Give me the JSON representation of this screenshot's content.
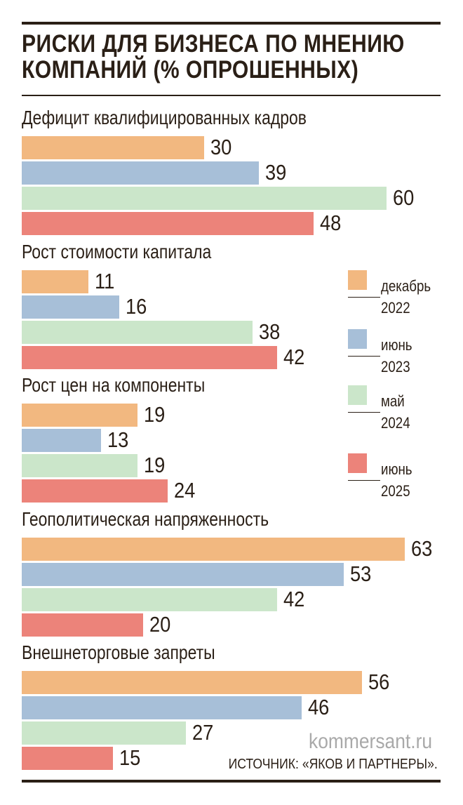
{
  "chart_data": {
    "type": "bar",
    "orientation": "horizontal",
    "title": "РИСКИ ДЛЯ БИЗНЕСА ПО МНЕНИЮ КОМПАНИЙ (% ОПРОШЕННЫХ)",
    "categories": [
      "Дефицит квалифицированных кадров",
      "Рост стоимости капитала",
      "Рост цен на компоненты",
      "Геополитическая напряженность",
      "Внешнеторговые запреты"
    ],
    "series": [
      {
        "name": "декабрь 2022",
        "color": "#F2B880",
        "values": [
          30,
          11,
          19,
          63,
          56
        ]
      },
      {
        "name": "июнь 2023",
        "color": "#A7BFD8",
        "values": [
          39,
          16,
          13,
          53,
          46
        ]
      },
      {
        "name": "май 2024",
        "color": "#CBE6CA",
        "values": [
          60,
          38,
          19,
          42,
          27
        ]
      },
      {
        "name": "июнь 2025",
        "color": "#EC837A",
        "values": [
          48,
          42,
          24,
          20,
          15
        ]
      }
    ],
    "xlim": [
      0,
      63
    ],
    "legend_position": "right",
    "grid": false
  },
  "legend": [
    {
      "line1": "декабрь",
      "line2": "2022"
    },
    {
      "line1": "июнь",
      "line2": "2023"
    },
    {
      "line1": "май",
      "line2": "2024"
    },
    {
      "line1": "июнь",
      "line2": "2025"
    }
  ],
  "watermark": "kommersant.ru",
  "source": "ИСТОЧНИК: «ЯКОВ И ПАРТНЕРЫ»."
}
